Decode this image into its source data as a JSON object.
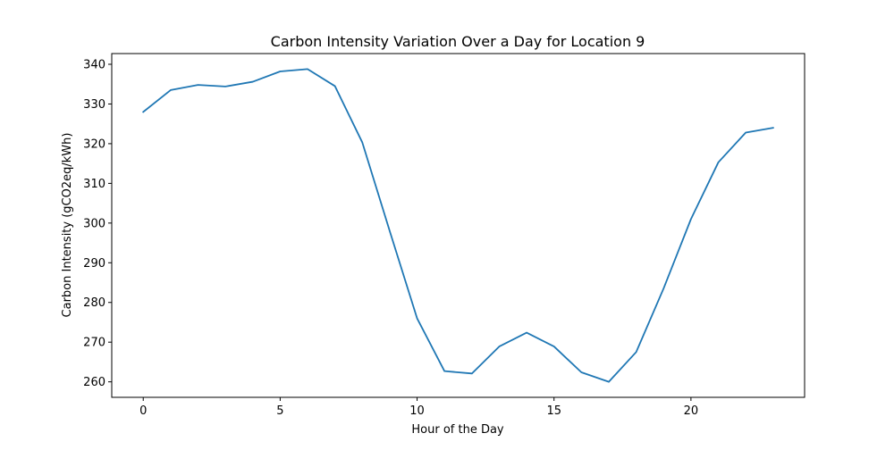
{
  "chart_data": {
    "type": "line",
    "title": "Carbon Intensity Variation Over a Day for Location 9",
    "xlabel": "Hour of the Day",
    "ylabel": "Carbon Intensity (gCO2eq/kWh)",
    "xlim": [
      -1.15,
      24.15
    ],
    "ylim": [
      256.1,
      342.7
    ],
    "xticks": [
      0,
      5,
      10,
      15,
      20
    ],
    "yticks": [
      260,
      270,
      280,
      290,
      300,
      310,
      320,
      330,
      340
    ],
    "grid": false,
    "series": [
      {
        "color": "#1f77b4",
        "x": [
          0,
          1,
          2,
          3,
          4,
          5,
          6,
          7,
          8,
          9,
          10,
          11,
          12,
          13,
          14,
          15,
          16,
          17,
          18,
          19,
          20,
          21,
          22,
          23
        ],
        "y": [
          328.0,
          333.5,
          334.8,
          334.4,
          335.6,
          338.2,
          338.8,
          334.5,
          320.3,
          298.0,
          276.0,
          262.7,
          262.1,
          268.9,
          272.4,
          268.9,
          262.4,
          260.0,
          267.5,
          283.5,
          301.0,
          315.3,
          322.8,
          324.0
        ]
      }
    ]
  }
}
